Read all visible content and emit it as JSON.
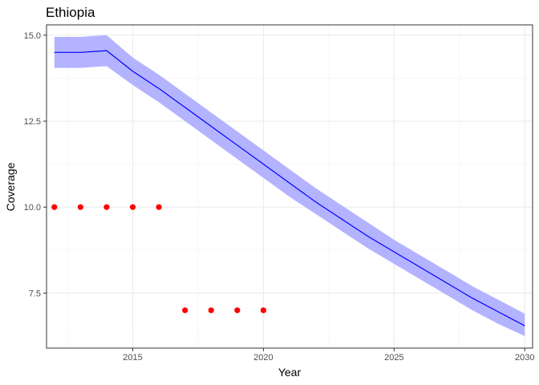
{
  "chart_data": {
    "type": "line",
    "title": "Ethiopia",
    "xlabel": "Year",
    "ylabel": "Coverage",
    "xlim": [
      2011.7,
      2030.3
    ],
    "ylim": [
      5.9,
      15.3
    ],
    "x_ticks": [
      2015,
      2020,
      2025,
      2030
    ],
    "x_tick_labels": [
      "2015",
      "2020",
      "2025",
      "2030"
    ],
    "y_ticks": [
      7.5,
      10.0,
      12.5,
      15.0
    ],
    "y_tick_labels": [
      "7.5",
      "10.0",
      "12.5",
      "15.0"
    ],
    "grid": true,
    "theme": "bw",
    "series": [
      {
        "style": "line-with-ribbon",
        "color": "#0000ff",
        "ribbon_color": "#b3b3ff",
        "x": [
          2012,
          2013,
          2014,
          2015,
          2016,
          2017,
          2018,
          2019,
          2020,
          2021,
          2022,
          2023,
          2024,
          2025,
          2026,
          2027,
          2028,
          2029,
          2030
        ],
        "y": [
          14.5,
          14.5,
          14.55,
          13.95,
          13.45,
          12.9,
          12.35,
          11.8,
          11.25,
          10.7,
          10.15,
          9.65,
          9.15,
          8.7,
          8.25,
          7.8,
          7.35,
          6.95,
          6.55
        ],
        "lower": [
          14.05,
          14.05,
          14.1,
          13.55,
          13.05,
          12.5,
          11.95,
          11.4,
          10.85,
          10.3,
          9.8,
          9.3,
          8.8,
          8.35,
          7.9,
          7.45,
          7.0,
          6.6,
          6.25
        ],
        "upper": [
          14.95,
          14.95,
          15.0,
          14.35,
          13.85,
          13.3,
          12.75,
          12.2,
          11.65,
          11.1,
          10.55,
          10.05,
          9.55,
          9.05,
          8.6,
          8.15,
          7.7,
          7.3,
          6.9
        ]
      },
      {
        "style": "points",
        "color": "#ff0000",
        "x": [
          2012,
          2013,
          2014,
          2015,
          2016,
          2017,
          2018,
          2019,
          2020
        ],
        "y": [
          10,
          10,
          10,
          10,
          10,
          7,
          7,
          7,
          7
        ]
      }
    ]
  }
}
